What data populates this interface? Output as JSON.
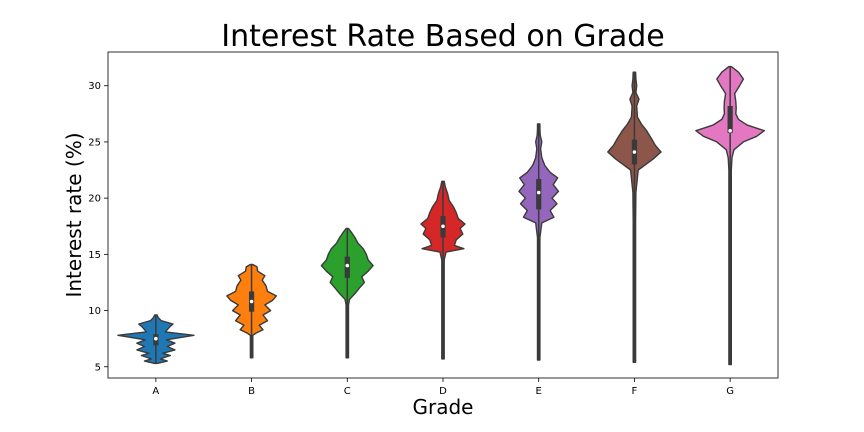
{
  "chart_data": {
    "type": "violin",
    "title": "Interest Rate Based on Grade",
    "xlabel": "Grade",
    "ylabel": "Interest rate (%)",
    "ylim": [
      4.0,
      33.0
    ],
    "yticks": [
      "5",
      "10",
      "15",
      "20",
      "25",
      "30"
    ],
    "categories": [
      "A",
      "B",
      "C",
      "D",
      "E",
      "F",
      "G"
    ],
    "grid": false,
    "series": [
      {
        "category": "A",
        "color": "#1f77b4",
        "min": 5.3,
        "max": 9.6,
        "q1": 6.9,
        "median": 7.5,
        "q3": 7.9,
        "profile": [
          [
            5.3,
            0.0
          ],
          [
            5.5,
            0.3
          ],
          [
            5.7,
            0.12
          ],
          [
            6.0,
            0.38
          ],
          [
            6.2,
            0.18
          ],
          [
            6.5,
            0.5
          ],
          [
            6.8,
            0.3
          ],
          [
            7.1,
            0.5
          ],
          [
            7.4,
            0.28
          ],
          [
            7.8,
            1.0
          ],
          [
            8.1,
            0.25
          ],
          [
            8.5,
            0.35
          ],
          [
            8.8,
            0.45
          ],
          [
            9.1,
            0.14
          ],
          [
            9.4,
            0.06
          ],
          [
            9.6,
            0.0
          ]
        ]
      },
      {
        "category": "B",
        "color": "#ff7f0e",
        "min": 5.8,
        "max": 14.1,
        "q1": 9.9,
        "median": 10.8,
        "q3": 11.7,
        "profile": [
          [
            5.8,
            0.0
          ],
          [
            7.8,
            0.02
          ],
          [
            8.0,
            0.12
          ],
          [
            8.3,
            0.3
          ],
          [
            8.7,
            0.2
          ],
          [
            9.1,
            0.42
          ],
          [
            9.6,
            0.3
          ],
          [
            10.0,
            0.5
          ],
          [
            10.5,
            0.35
          ],
          [
            10.9,
            0.55
          ],
          [
            11.3,
            0.65
          ],
          [
            11.7,
            0.42
          ],
          [
            12.2,
            0.38
          ],
          [
            12.7,
            0.28
          ],
          [
            13.1,
            0.35
          ],
          [
            13.5,
            0.16
          ],
          [
            13.9,
            0.14
          ],
          [
            14.1,
            0.0
          ]
        ]
      },
      {
        "category": "C",
        "color": "#2ca02c",
        "min": 5.8,
        "max": 17.3,
        "q1": 12.9,
        "median": 14.0,
        "q3": 14.8,
        "profile": [
          [
            5.8,
            0.0
          ],
          [
            10.5,
            0.02
          ],
          [
            11.0,
            0.06
          ],
          [
            11.5,
            0.2
          ],
          [
            12.0,
            0.32
          ],
          [
            12.5,
            0.45
          ],
          [
            13.0,
            0.38
          ],
          [
            13.5,
            0.55
          ],
          [
            14.0,
            0.68
          ],
          [
            14.5,
            0.55
          ],
          [
            15.0,
            0.5
          ],
          [
            15.5,
            0.42
          ],
          [
            16.0,
            0.28
          ],
          [
            16.5,
            0.2
          ],
          [
            17.0,
            0.1
          ],
          [
            17.3,
            0.0
          ]
        ]
      },
      {
        "category": "D",
        "color": "#d62728",
        "min": 5.7,
        "max": 21.5,
        "q1": 16.5,
        "median": 17.5,
        "q3": 18.4,
        "profile": [
          [
            5.7,
            0.0
          ],
          [
            14.5,
            0.02
          ],
          [
            15.2,
            0.08
          ],
          [
            15.5,
            0.55
          ],
          [
            15.8,
            0.3
          ],
          [
            16.3,
            0.35
          ],
          [
            16.8,
            0.52
          ],
          [
            17.3,
            0.45
          ],
          [
            17.7,
            0.58
          ],
          [
            18.2,
            0.4
          ],
          [
            18.7,
            0.35
          ],
          [
            19.2,
            0.28
          ],
          [
            19.8,
            0.16
          ],
          [
            20.4,
            0.12
          ],
          [
            21.0,
            0.06
          ],
          [
            21.5,
            0.0
          ]
        ]
      },
      {
        "category": "E",
        "color": "#9467bd",
        "min": 5.6,
        "max": 26.6,
        "q1": 19.0,
        "median": 20.5,
        "q3": 21.7,
        "profile": [
          [
            5.6,
            0.0
          ],
          [
            15.0,
            0.02
          ],
          [
            16.5,
            0.03
          ],
          [
            17.8,
            0.08
          ],
          [
            18.3,
            0.4
          ],
          [
            18.9,
            0.3
          ],
          [
            19.5,
            0.48
          ],
          [
            20.0,
            0.35
          ],
          [
            20.6,
            0.52
          ],
          [
            21.2,
            0.38
          ],
          [
            21.8,
            0.5
          ],
          [
            22.3,
            0.3
          ],
          [
            22.9,
            0.16
          ],
          [
            23.6,
            0.08
          ],
          [
            24.4,
            0.05
          ],
          [
            25.0,
            0.08
          ],
          [
            25.6,
            0.04
          ],
          [
            26.2,
            0.03
          ],
          [
            26.6,
            0.0
          ]
        ]
      },
      {
        "category": "F",
        "color": "#8c564b",
        "min": 5.4,
        "max": 31.2,
        "q1": 23.0,
        "median": 24.1,
        "q3": 25.2,
        "profile": [
          [
            5.4,
            0.0
          ],
          [
            18.0,
            0.02
          ],
          [
            20.5,
            0.04
          ],
          [
            22.5,
            0.1
          ],
          [
            23.0,
            0.3
          ],
          [
            23.5,
            0.5
          ],
          [
            24.1,
            0.7
          ],
          [
            24.7,
            0.55
          ],
          [
            25.3,
            0.45
          ],
          [
            26.0,
            0.32
          ],
          [
            26.6,
            0.18
          ],
          [
            27.2,
            0.08
          ],
          [
            28.2,
            0.06
          ],
          [
            28.8,
            0.12
          ],
          [
            29.4,
            0.04
          ],
          [
            30.0,
            0.06
          ],
          [
            30.6,
            0.04
          ],
          [
            31.2,
            0.0
          ]
        ]
      },
      {
        "category": "G",
        "color": "#e377c2",
        "min": 5.2,
        "max": 31.7,
        "q1": 25.8,
        "median": 26.0,
        "q3": 28.2,
        "profile": [
          [
            5.2,
            0.0
          ],
          [
            20.0,
            0.02
          ],
          [
            22.5,
            0.03
          ],
          [
            23.6,
            0.05
          ],
          [
            24.3,
            0.1
          ],
          [
            25.0,
            0.35
          ],
          [
            25.5,
            0.7
          ],
          [
            26.0,
            0.9
          ],
          [
            26.5,
            0.45
          ],
          [
            27.0,
            0.22
          ],
          [
            27.5,
            0.15
          ],
          [
            28.0,
            0.16
          ],
          [
            28.6,
            0.15
          ],
          [
            29.3,
            0.12
          ],
          [
            30.0,
            0.25
          ],
          [
            30.6,
            0.35
          ],
          [
            31.2,
            0.22
          ],
          [
            31.7,
            0.0
          ]
        ]
      }
    ]
  }
}
